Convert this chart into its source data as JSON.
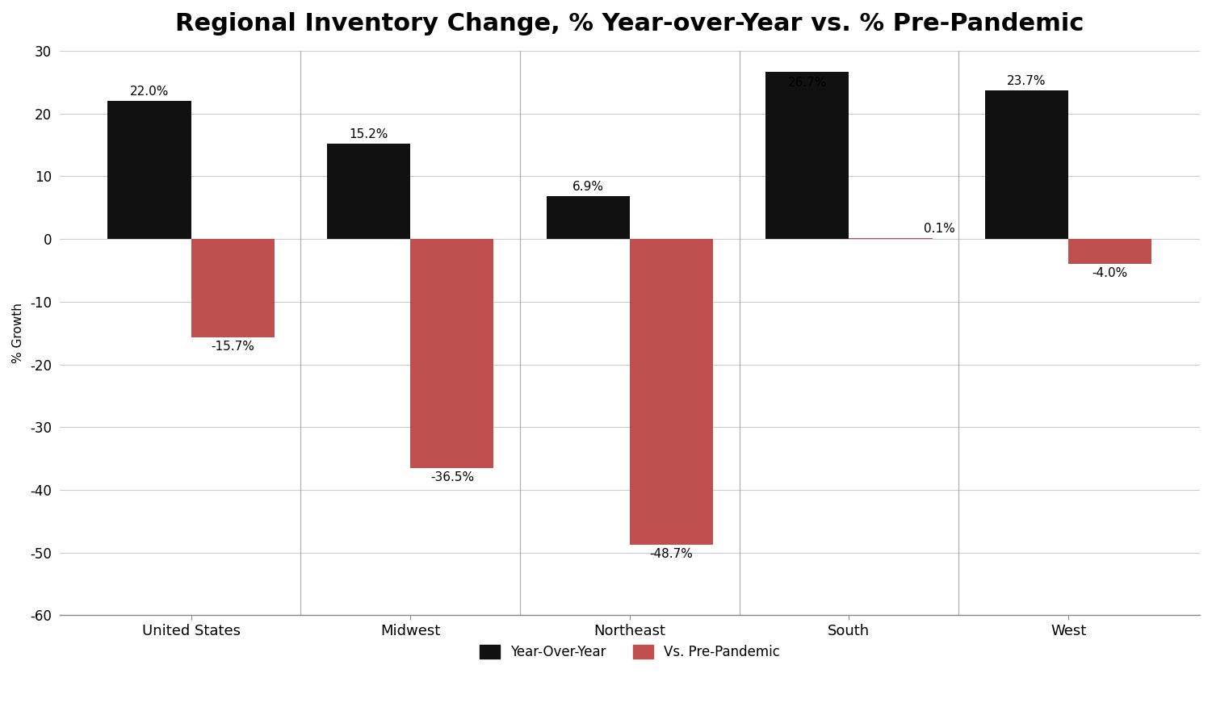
{
  "title": "Regional Inventory Change, % Year-over-Year vs. % Pre-Pandemic",
  "categories": [
    "United States",
    "Midwest",
    "Northeast",
    "South",
    "West"
  ],
  "yoy_values": [
    22.0,
    15.2,
    6.9,
    26.7,
    23.7
  ],
  "prepandemic_values": [
    -15.7,
    -36.5,
    -48.7,
    0.1,
    -4.0
  ],
  "yoy_labels": [
    "22.0%",
    "15.2%",
    "6.9%",
    "26.7%",
    "23.7%"
  ],
  "prepandemic_labels": [
    "-15.7%",
    "-36.5%",
    "-48.7%",
    "0.1%",
    "-4.0%"
  ],
  "yoy_color": "#111111",
  "prepandemic_color": "#c0504d",
  "ylabel": "% Growth",
  "ylim": [
    -60,
    30
  ],
  "yticks": [
    30,
    20,
    10,
    0,
    -10,
    -20,
    -30,
    -40,
    -50,
    -60
  ],
  "ytick_labels": [
    "30",
    "20",
    "10",
    "0",
    "-10",
    "-20",
    "-30",
    "-40",
    "-50",
    "-60"
  ],
  "legend_yoy": "Year-Over-Year",
  "legend_pre": "Vs. Pre-Pandemic",
  "bar_width": 0.38,
  "background_color": "#ffffff",
  "title_fontsize": 22,
  "label_fontsize": 11,
  "tick_fontsize": 12,
  "ylabel_fontsize": 11,
  "legend_fontsize": 12
}
